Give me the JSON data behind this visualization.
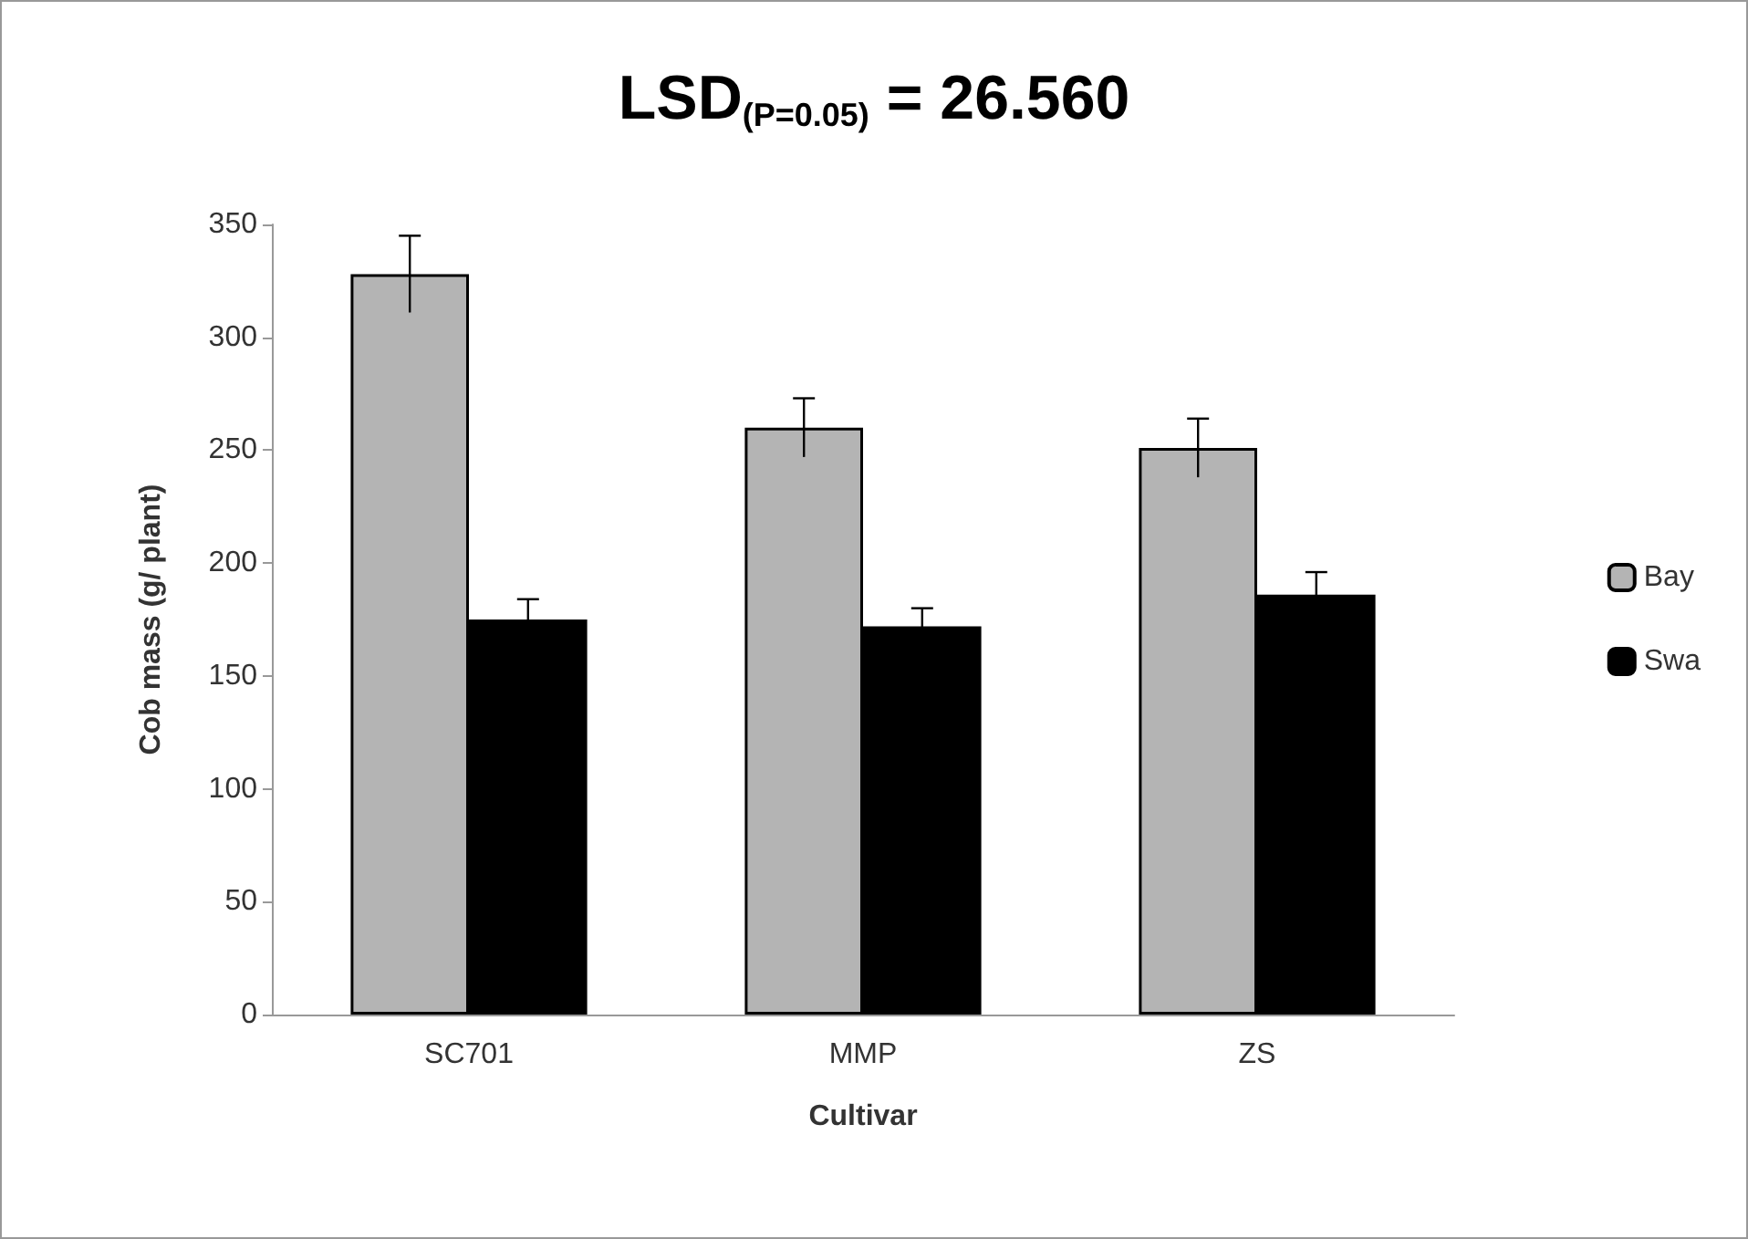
{
  "chart_data": {
    "type": "bar",
    "title": "LSD$_{(P=0.05)}$ = 26.560",
    "xlabel": "Cultivar",
    "ylabel": "Cob mass (g/ plant)",
    "categories": [
      "SC701",
      "MMP",
      "ZS"
    ],
    "series": [
      {
        "name": "Bay",
        "color": "#b4b4b4",
        "values": [
          328,
          260,
          251
        ],
        "errors": [
          17,
          13,
          13
        ]
      },
      {
        "name": "Swa",
        "color": "#000000",
        "values": [
          175,
          172,
          186
        ],
        "errors": [
          9,
          8,
          10
        ]
      }
    ],
    "ylim": [
      0,
      350
    ],
    "yticks": [
      0,
      50,
      100,
      150,
      200,
      250,
      300,
      350
    ],
    "grid": false,
    "legend": "right"
  }
}
